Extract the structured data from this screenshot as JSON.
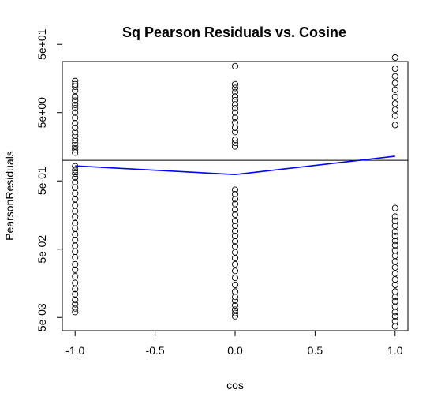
{
  "chart_data": {
    "type": "scatter",
    "title": "Sq Pearson Residuals vs. Cosine",
    "xlabel": "cos",
    "ylabel": "PearsonResiduals",
    "y_scale": "log",
    "xlim": [
      -1.08,
      1.08
    ],
    "ylim": [
      0.0032,
      28
    ],
    "x_ticks": [
      -1.0,
      -0.5,
      0.0,
      0.5,
      1.0
    ],
    "x_tick_labels": [
      "-1.0",
      "-0.5",
      "0.0",
      "0.5",
      "1.0"
    ],
    "y_ticks": [
      0.005,
      0.05,
      0.5,
      5,
      50
    ],
    "y_tick_labels": [
      "5e-03",
      "5e-02",
      "5e-01",
      "5e+00",
      "5e+01"
    ],
    "reference_line": {
      "y": 1.0,
      "color": "#000000"
    },
    "smooth_line": {
      "color": "#0000ff",
      "x": [
        -1.0,
        0.0,
        1.0
      ],
      "y": [
        0.83,
        0.62,
        1.15
      ]
    },
    "point_groups": [
      {
        "x": -1.0,
        "y": [
          0.006,
          0.0068,
          0.0078,
          0.009,
          0.011,
          0.013,
          0.016,
          0.02,
          0.025,
          0.03,
          0.038,
          0.046,
          0.056,
          0.068,
          0.082,
          0.1,
          0.12,
          0.15,
          0.18,
          0.22,
          0.27,
          0.33,
          0.4,
          0.48,
          0.56,
          0.64,
          0.72,
          0.82,
          1.3,
          1.45,
          1.6,
          1.8,
          2.0,
          2.3,
          2.6,
          3.0,
          3.5,
          4.2,
          5.0,
          5.8,
          6.5,
          7.5,
          8.5,
          10.5,
          12.0,
          13.0,
          14.5
        ]
      },
      {
        "x": 0.0,
        "y": [
          0.0052,
          0.0058,
          0.0065,
          0.0075,
          0.0088,
          0.01,
          0.012,
          0.015,
          0.019,
          0.024,
          0.03,
          0.037,
          0.045,
          0.055,
          0.065,
          0.078,
          0.092,
          0.11,
          0.13,
          0.16,
          0.19,
          0.23,
          0.27,
          0.32,
          0.37,
          1.6,
          1.8,
          2.0,
          2.6,
          3.0,
          3.6,
          4.2,
          5.0,
          5.8,
          6.6,
          7.6,
          8.6,
          10.0,
          11.5,
          13.0,
          24.0
        ]
      },
      {
        "x": 1.0,
        "y": [
          0.0037,
          0.0044,
          0.0052,
          0.006,
          0.0072,
          0.0086,
          0.01,
          0.012,
          0.015,
          0.018,
          0.022,
          0.027,
          0.033,
          0.04,
          0.048,
          0.057,
          0.066,
          0.078,
          0.09,
          0.11,
          0.13,
          0.15,
          0.2,
          3.3,
          4.5,
          5.5,
          6.8,
          8.5,
          10.8,
          13.5,
          17.0,
          22.0,
          32.0
        ]
      }
    ]
  }
}
